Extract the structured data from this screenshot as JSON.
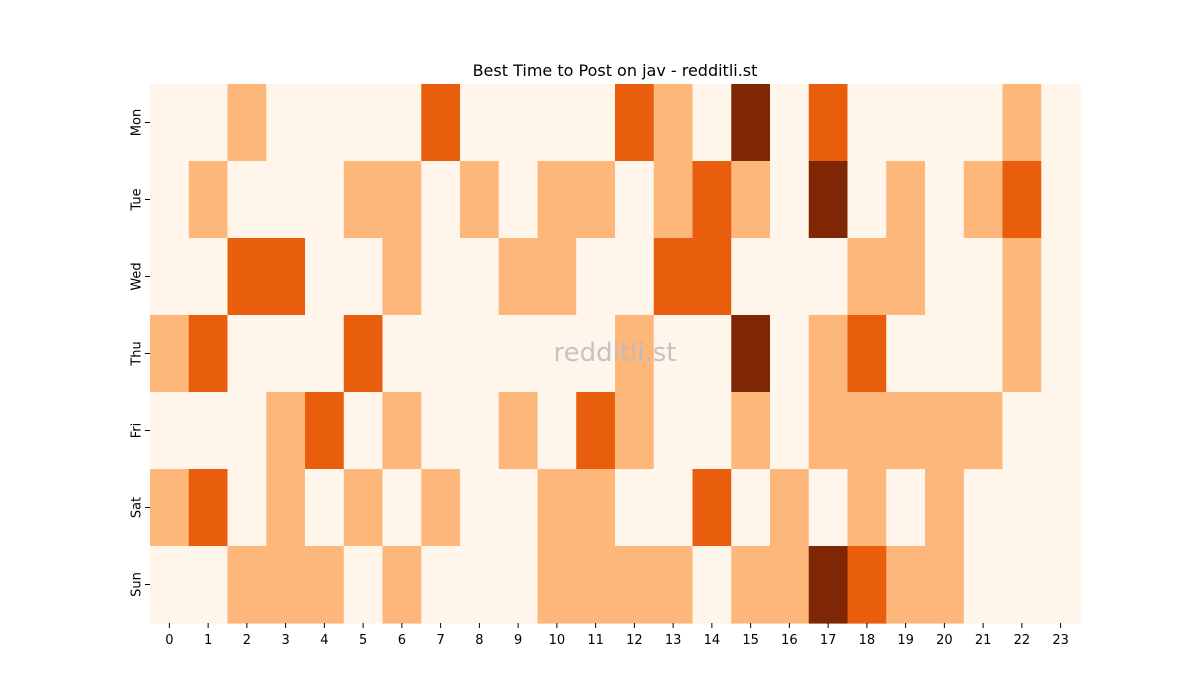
{
  "chart_data": {
    "type": "heatmap",
    "title": "Best Time to Post on jav - redditli.st",
    "watermark": "redditli.st",
    "x_categories": [
      "0",
      "1",
      "2",
      "3",
      "4",
      "5",
      "6",
      "7",
      "8",
      "9",
      "10",
      "11",
      "12",
      "13",
      "14",
      "15",
      "16",
      "17",
      "18",
      "19",
      "20",
      "21",
      "22",
      "23"
    ],
    "y_categories": [
      "Mon",
      "Tue",
      "Wed",
      "Thu",
      "Fri",
      "Sat",
      "Sun"
    ],
    "colormap": "Oranges",
    "color_levels": [
      "#fff5eb",
      "#fdb77a",
      "#e95e0d",
      "#7f2704"
    ],
    "values": [
      [
        0,
        0,
        1,
        0,
        0,
        0,
        0,
        2,
        0,
        0,
        0,
        0,
        2,
        1,
        0,
        3,
        0,
        2,
        0,
        0,
        0,
        0,
        1,
        0
      ],
      [
        0,
        1,
        0,
        0,
        0,
        1,
        1,
        0,
        1,
        0,
        1,
        1,
        0,
        1,
        2,
        1,
        0,
        3,
        0,
        1,
        0,
        1,
        2,
        0
      ],
      [
        0,
        0,
        2,
        2,
        0,
        0,
        1,
        0,
        0,
        1,
        1,
        0,
        0,
        2,
        2,
        0,
        0,
        0,
        1,
        1,
        0,
        0,
        1,
        0
      ],
      [
        1,
        2,
        0,
        0,
        0,
        2,
        0,
        0,
        0,
        0,
        0,
        0,
        1,
        0,
        0,
        3,
        0,
        1,
        2,
        0,
        0,
        0,
        1,
        0
      ],
      [
        0,
        0,
        0,
        1,
        2,
        0,
        1,
        0,
        0,
        1,
        0,
        2,
        1,
        0,
        0,
        1,
        0,
        1,
        1,
        1,
        1,
        1,
        0,
        0
      ],
      [
        1,
        2,
        0,
        1,
        0,
        1,
        0,
        1,
        0,
        0,
        1,
        1,
        0,
        0,
        2,
        0,
        1,
        0,
        1,
        0,
        1,
        0,
        0,
        0
      ],
      [
        0,
        0,
        1,
        1,
        1,
        0,
        1,
        0,
        0,
        0,
        1,
        1,
        1,
        1,
        0,
        1,
        1,
        3,
        2,
        1,
        1,
        0,
        0,
        0
      ]
    ],
    "grid": false,
    "legend": "none"
  }
}
